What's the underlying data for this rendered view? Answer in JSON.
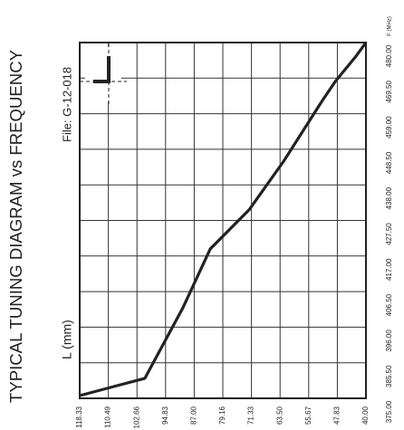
{
  "chart_data": {
    "type": "line",
    "title": "TYPICAL TUNING DIAGRAM vs FREQUENCY",
    "file_label": "File: G-12-018",
    "y_label": "L (mm)",
    "x_label": "F (MHz)",
    "x": [
      375.8,
      380.9,
      401.7,
      419.1,
      430.6,
      445.0,
      462.6,
      468.5,
      476.0,
      480.0
    ],
    "series": [
      {
        "color": "#222222",
        "values": [
          118.33,
          100.5,
          90.1,
          82.6,
          72.0,
          62.5,
          52.1,
          48.4,
          42.7,
          40.0
        ]
      }
    ],
    "xlim": [
      375,
      480
    ],
    "xticks": [
      {
        "value": 375,
        "label": "375.00"
      },
      {
        "value": 385.5,
        "label": "385.50"
      },
      {
        "value": 396,
        "label": "396.00"
      },
      {
        "value": 406.5,
        "label": "406.50"
      },
      {
        "value": 417,
        "label": "417.00"
      },
      {
        "value": 427.5,
        "label": "427.50"
      },
      {
        "value": 438,
        "label": "438.00"
      },
      {
        "value": 448.5,
        "label": "448.50"
      },
      {
        "value": 459,
        "label": "459.00"
      },
      {
        "value": 469.5,
        "label": "469.50"
      },
      {
        "value": 480,
        "label": "480.00"
      }
    ],
    "ylim": [
      40,
      118.33
    ],
    "yticks": [
      {
        "value": 118.33,
        "label": "118.33"
      },
      {
        "value": 110.49,
        "label": "110.49"
      },
      {
        "value": 102.66,
        "label": "102.66"
      },
      {
        "value": 94.83,
        "label": "94.83"
      },
      {
        "value": 87,
        "label": "87.00"
      },
      {
        "value": 79.16,
        "label": "79.16"
      },
      {
        "value": 71.33,
        "label": "71.33"
      },
      {
        "value": 63.5,
        "label": "63.50"
      },
      {
        "value": 55.67,
        "label": "55.67"
      },
      {
        "value": 47.83,
        "label": "47.83"
      },
      {
        "value": 40,
        "label": "40.00"
      }
    ],
    "grid": true
  }
}
